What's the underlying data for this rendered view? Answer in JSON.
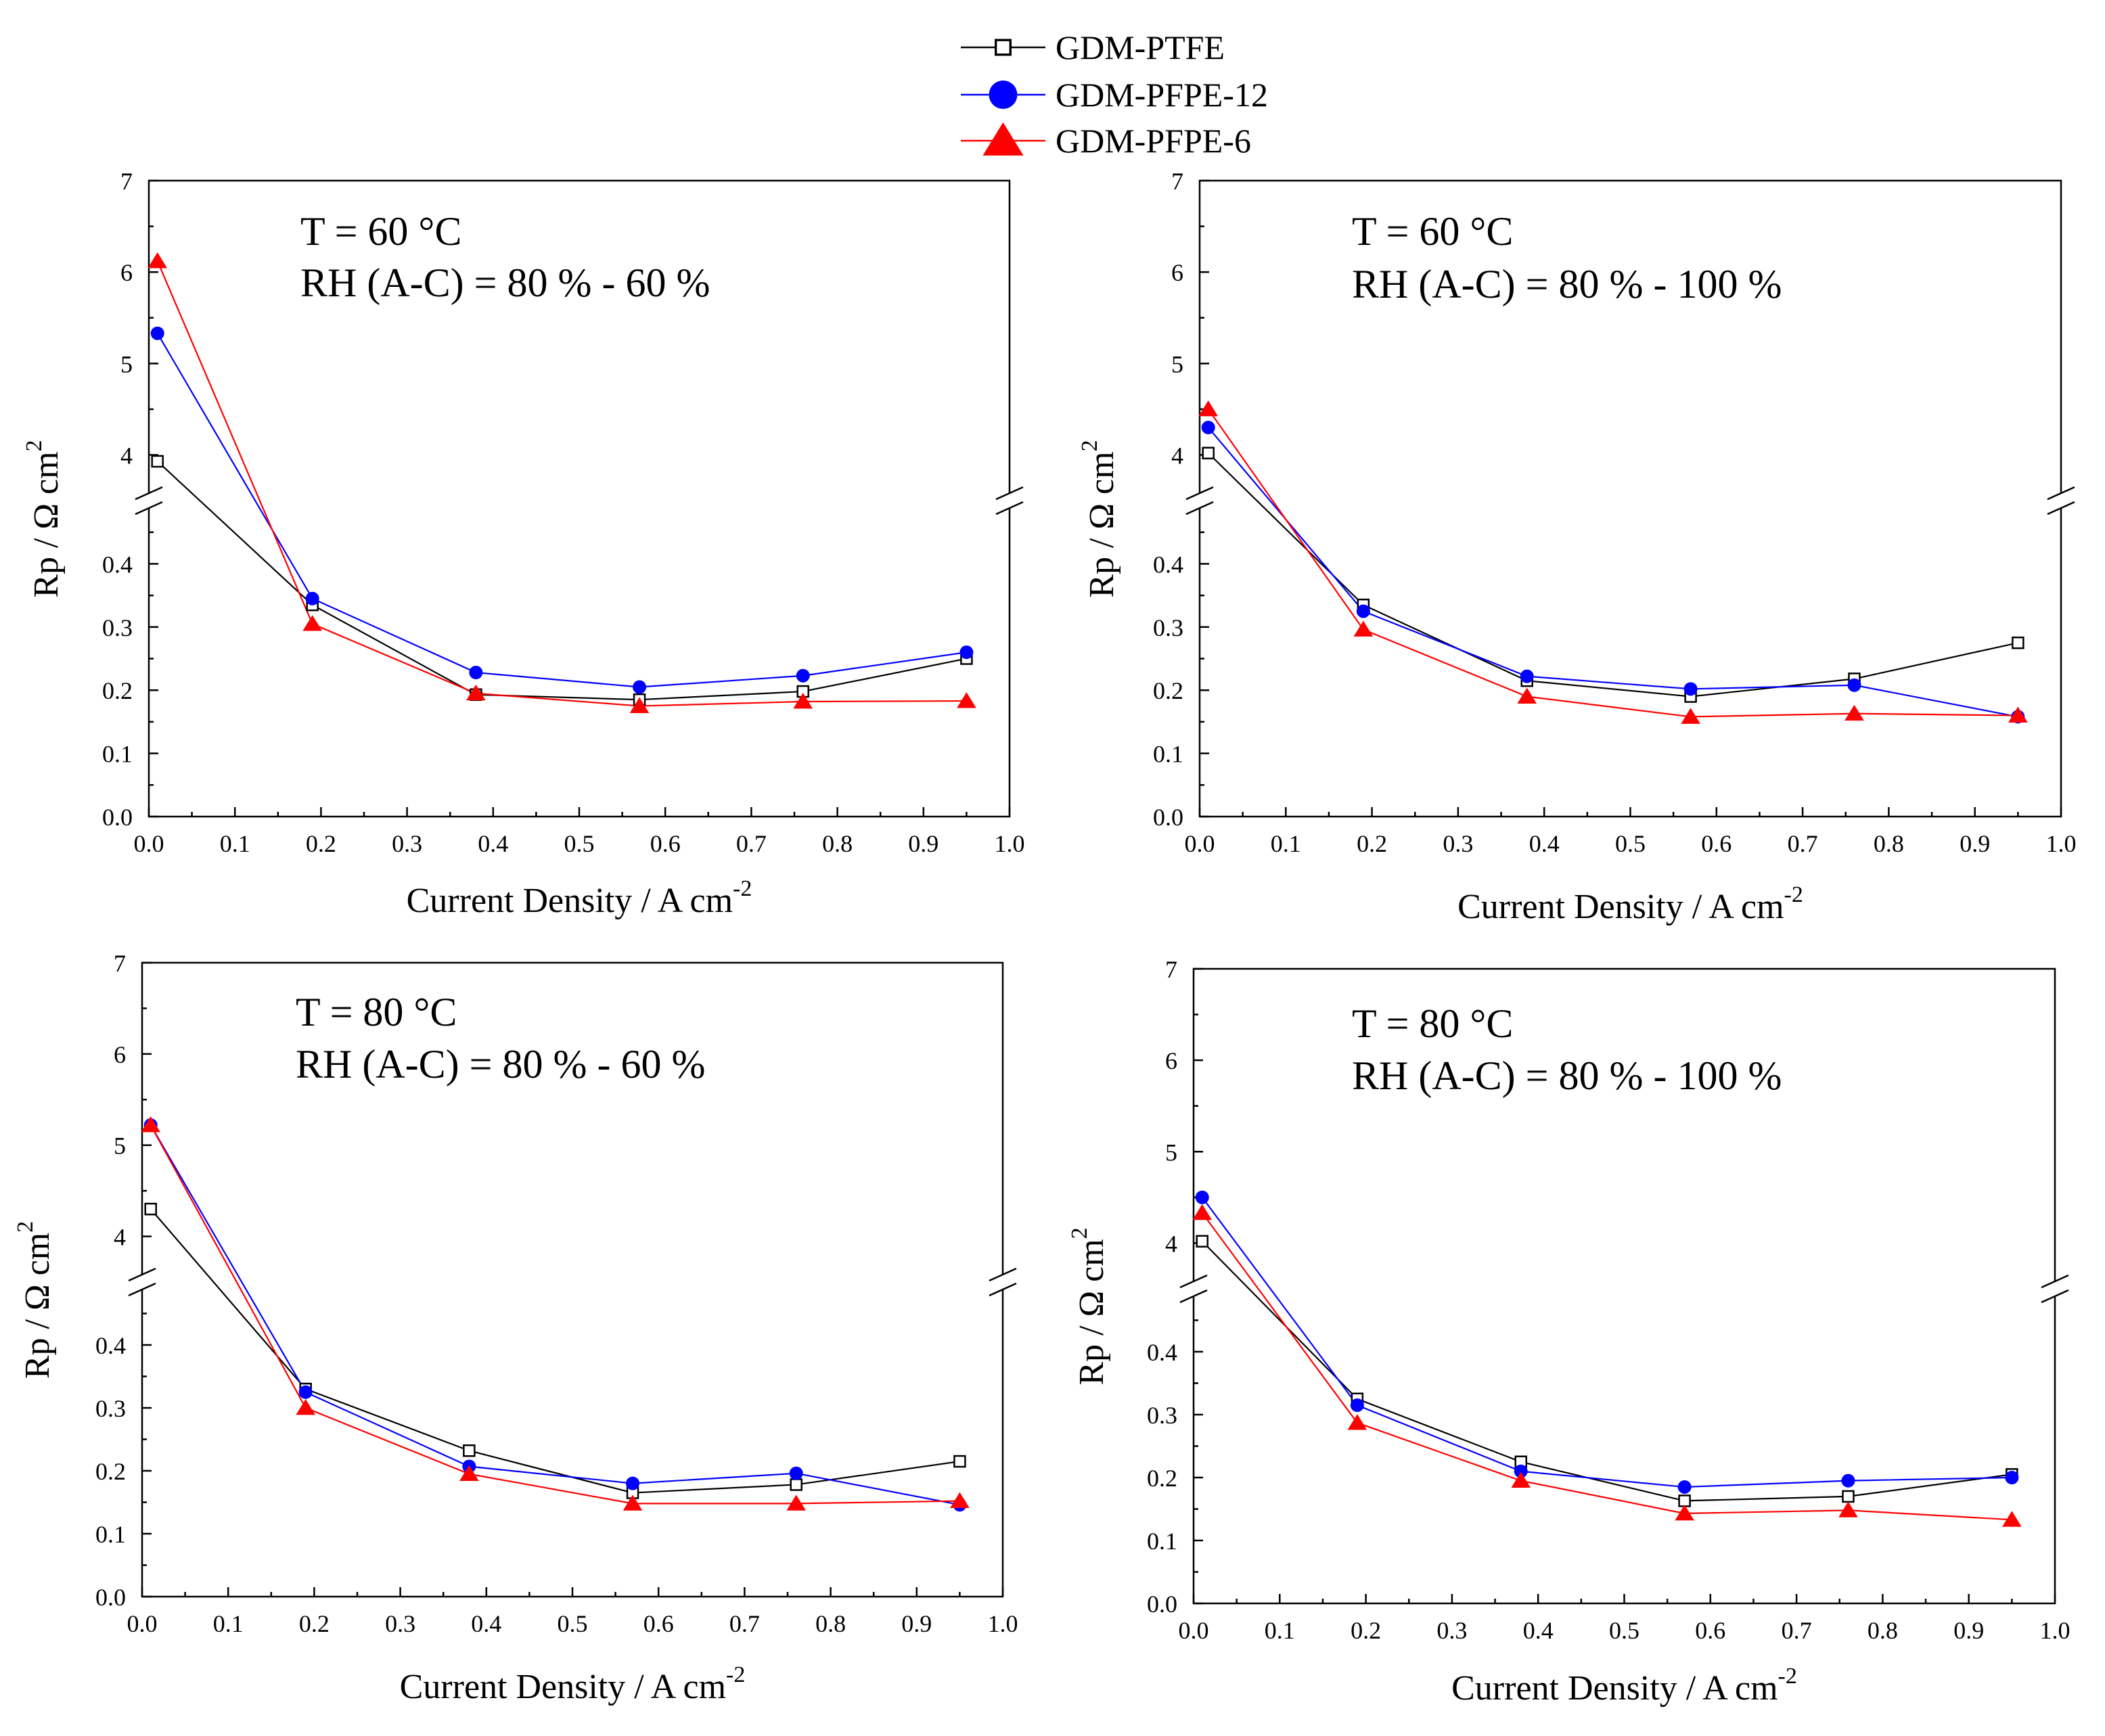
{
  "legend": [
    {
      "name": "GDM-PTFE",
      "marker": "square-open",
      "color": "#000000"
    },
    {
      "name": "GDM-PFPE-12",
      "marker": "circle",
      "color": "#0000ff"
    },
    {
      "name": "GDM-PFPE-6",
      "marker": "triangle",
      "color": "#ff0000"
    }
  ],
  "chart_data": [
    {
      "type": "line",
      "annotation": [
        "T = 60 °C",
        "RH (A-C) = 80 % - 60 %"
      ],
      "xlabel": "Current Density / A cm",
      "xlabel_sup": "-2",
      "ylabel": "Rp / Ω cm",
      "ylabel_sup": "2",
      "xlim": [
        0.0,
        1.0
      ],
      "xticks": [
        "0.0",
        "0.1",
        "0.2",
        "0.3",
        "0.4",
        "0.5",
        "0.6",
        "0.7",
        "0.8",
        "0.9",
        "1.0"
      ],
      "ylim_lower": [
        0.0,
        0.5
      ],
      "yticks_lower": [
        "0.0",
        "0.1",
        "0.2",
        "0.3",
        "0.4"
      ],
      "ylim_upper": [
        3.5,
        7.0
      ],
      "yticks_upper": [
        "4",
        "5",
        "6",
        "7"
      ],
      "x": [
        0.01,
        0.19,
        0.38,
        0.57,
        0.76,
        0.95
      ],
      "series": [
        {
          "name": "GDM-PTFE",
          "values": [
            3.93,
            0.335,
            0.193,
            0.185,
            0.198,
            0.25
          ]
        },
        {
          "name": "GDM-PFPE-12",
          "values": [
            5.33,
            0.345,
            0.228,
            0.205,
            0.223,
            0.26
          ]
        },
        {
          "name": "GDM-PFPE-6",
          "values": [
            6.12,
            0.305,
            0.195,
            0.175,
            0.182,
            0.183
          ]
        }
      ]
    },
    {
      "type": "line",
      "annotation": [
        "T = 60 °C",
        "RH (A-C) = 80 % - 100 %"
      ],
      "xlabel": "Current Density / A cm",
      "xlabel_sup": "-2",
      "ylabel": "Rp / Ω cm",
      "ylabel_sup": "2",
      "xlim": [
        0.0,
        1.0
      ],
      "xticks": [
        "0.0",
        "0.1",
        "0.2",
        "0.3",
        "0.4",
        "0.5",
        "0.6",
        "0.7",
        "0.8",
        "0.9",
        "1.0"
      ],
      "ylim_lower": [
        0.0,
        0.5
      ],
      "yticks_lower": [
        "0.0",
        "0.1",
        "0.2",
        "0.3",
        "0.4"
      ],
      "ylim_upper": [
        3.5,
        7.0
      ],
      "yticks_upper": [
        "4",
        "5",
        "6",
        "7"
      ],
      "x": [
        0.01,
        0.19,
        0.38,
        0.57,
        0.76,
        0.95
      ],
      "series": [
        {
          "name": "GDM-PTFE",
          "values": [
            4.02,
            0.335,
            0.215,
            0.19,
            0.218,
            0.275
          ]
        },
        {
          "name": "GDM-PFPE-12",
          "values": [
            4.3,
            0.325,
            0.222,
            0.202,
            0.208,
            0.158
          ]
        },
        {
          "name": "GDM-PFPE-6",
          "values": [
            4.5,
            0.296,
            0.19,
            0.158,
            0.163,
            0.16
          ]
        }
      ]
    },
    {
      "type": "line",
      "annotation": [
        "T = 80 °C",
        "RH (A-C) = 80 % - 60 %"
      ],
      "xlabel": "Current Density / A cm",
      "xlabel_sup": "-2",
      "ylabel": "Rp / Ω cm",
      "ylabel_sup": "2",
      "xlim": [
        0.0,
        1.0
      ],
      "xticks": [
        "0.0",
        "0.1",
        "0.2",
        "0.3",
        "0.4",
        "0.5",
        "0.6",
        "0.7",
        "0.8",
        "0.9",
        "1.0"
      ],
      "ylim_lower": [
        0.0,
        0.5
      ],
      "yticks_lower": [
        "0.0",
        "0.1",
        "0.2",
        "0.3",
        "0.4"
      ],
      "ylim_upper": [
        3.5,
        7.0
      ],
      "yticks_upper": [
        "4",
        "5",
        "6",
        "7"
      ],
      "x": [
        0.01,
        0.19,
        0.38,
        0.57,
        0.76,
        0.95
      ],
      "series": [
        {
          "name": "GDM-PTFE",
          "values": [
            4.3,
            0.33,
            0.232,
            0.165,
            0.178,
            0.215
          ]
        },
        {
          "name": "GDM-PFPE-12",
          "values": [
            5.22,
            0.325,
            0.207,
            0.18,
            0.196,
            0.146
          ]
        },
        {
          "name": "GDM-PFPE-6",
          "values": [
            5.22,
            0.3,
            0.195,
            0.148,
            0.148,
            0.152
          ]
        }
      ]
    },
    {
      "type": "line",
      "annotation": [
        "T = 80 °C",
        "RH (A-C) = 80 % - 100 %"
      ],
      "xlabel": "Current Density / A cm",
      "xlabel_sup": "-2",
      "ylabel": "Rp / Ω cm",
      "ylabel_sup": "2",
      "xlim": [
        0.0,
        1.0
      ],
      "xticks": [
        "0.0",
        "0.1",
        "0.2",
        "0.3",
        "0.4",
        "0.5",
        "0.6",
        "0.7",
        "0.8",
        "0.9",
        "1.0"
      ],
      "ylim_lower": [
        0.0,
        0.5
      ],
      "yticks_lower": [
        "0.0",
        "0.1",
        "0.2",
        "0.3",
        "0.4"
      ],
      "ylim_upper": [
        3.5,
        7.0
      ],
      "yticks_upper": [
        "4",
        "5",
        "6",
        "7"
      ],
      "x": [
        0.01,
        0.19,
        0.38,
        0.57,
        0.76,
        0.95
      ],
      "series": [
        {
          "name": "GDM-PTFE",
          "values": [
            4.02,
            0.325,
            0.225,
            0.163,
            0.17,
            0.205
          ]
        },
        {
          "name": "GDM-PFPE-12",
          "values": [
            4.5,
            0.315,
            0.21,
            0.185,
            0.195,
            0.2
          ]
        },
        {
          "name": "GDM-PFPE-6",
          "values": [
            4.33,
            0.287,
            0.195,
            0.143,
            0.148,
            0.133
          ]
        }
      ]
    }
  ]
}
